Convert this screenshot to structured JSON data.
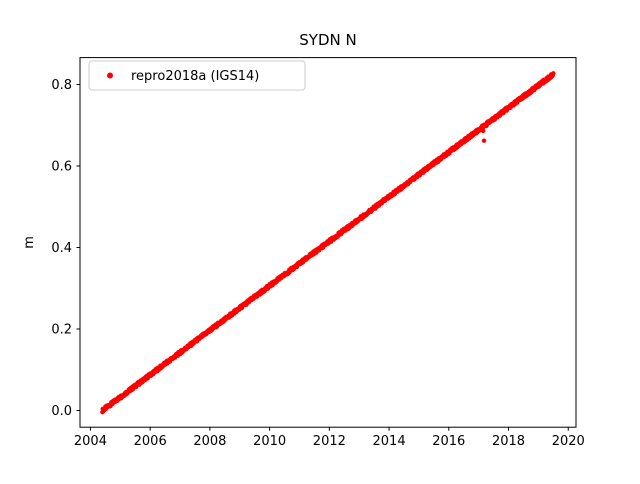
{
  "title": "SYDN N",
  "chart_data": {
    "type": "scatter",
    "title": "SYDN N",
    "xlabel": "",
    "ylabel": "m",
    "xlim": [
      2003.65,
      2020.26
    ],
    "ylim": [
      -0.041,
      0.866
    ],
    "xticks": [
      2004,
      2006,
      2008,
      2010,
      2012,
      2014,
      2016,
      2018,
      2020
    ],
    "xtick_labels": [
      "2004",
      "2006",
      "2008",
      "2010",
      "2012",
      "2014",
      "2016",
      "2018",
      "2020"
    ],
    "yticks": [
      0.0,
      0.2,
      0.4,
      0.6,
      0.8
    ],
    "ytick_labels": [
      "0.0",
      "0.2",
      "0.4",
      "0.6",
      "0.8"
    ],
    "grid": false,
    "legend": {
      "position": "upper-left",
      "entries": [
        {
          "label": "repro2018a (IGS14)",
          "color": "#ff0000",
          "marker": "circle"
        }
      ]
    },
    "series": [
      {
        "name": "repro2018a (IGS14)",
        "color": "#ff0000",
        "marker_radius_px": 2.2,
        "trend": {
          "x_start": 2004.4,
          "y_start": 0.0,
          "x_end": 2019.5,
          "y_end": 0.825
        },
        "sample_step_years": 0.01,
        "noise_amplitude_m": 0.004,
        "outliers": [
          [
            2017.15,
            0.686
          ],
          [
            2017.18,
            0.662
          ]
        ]
      }
    ]
  }
}
